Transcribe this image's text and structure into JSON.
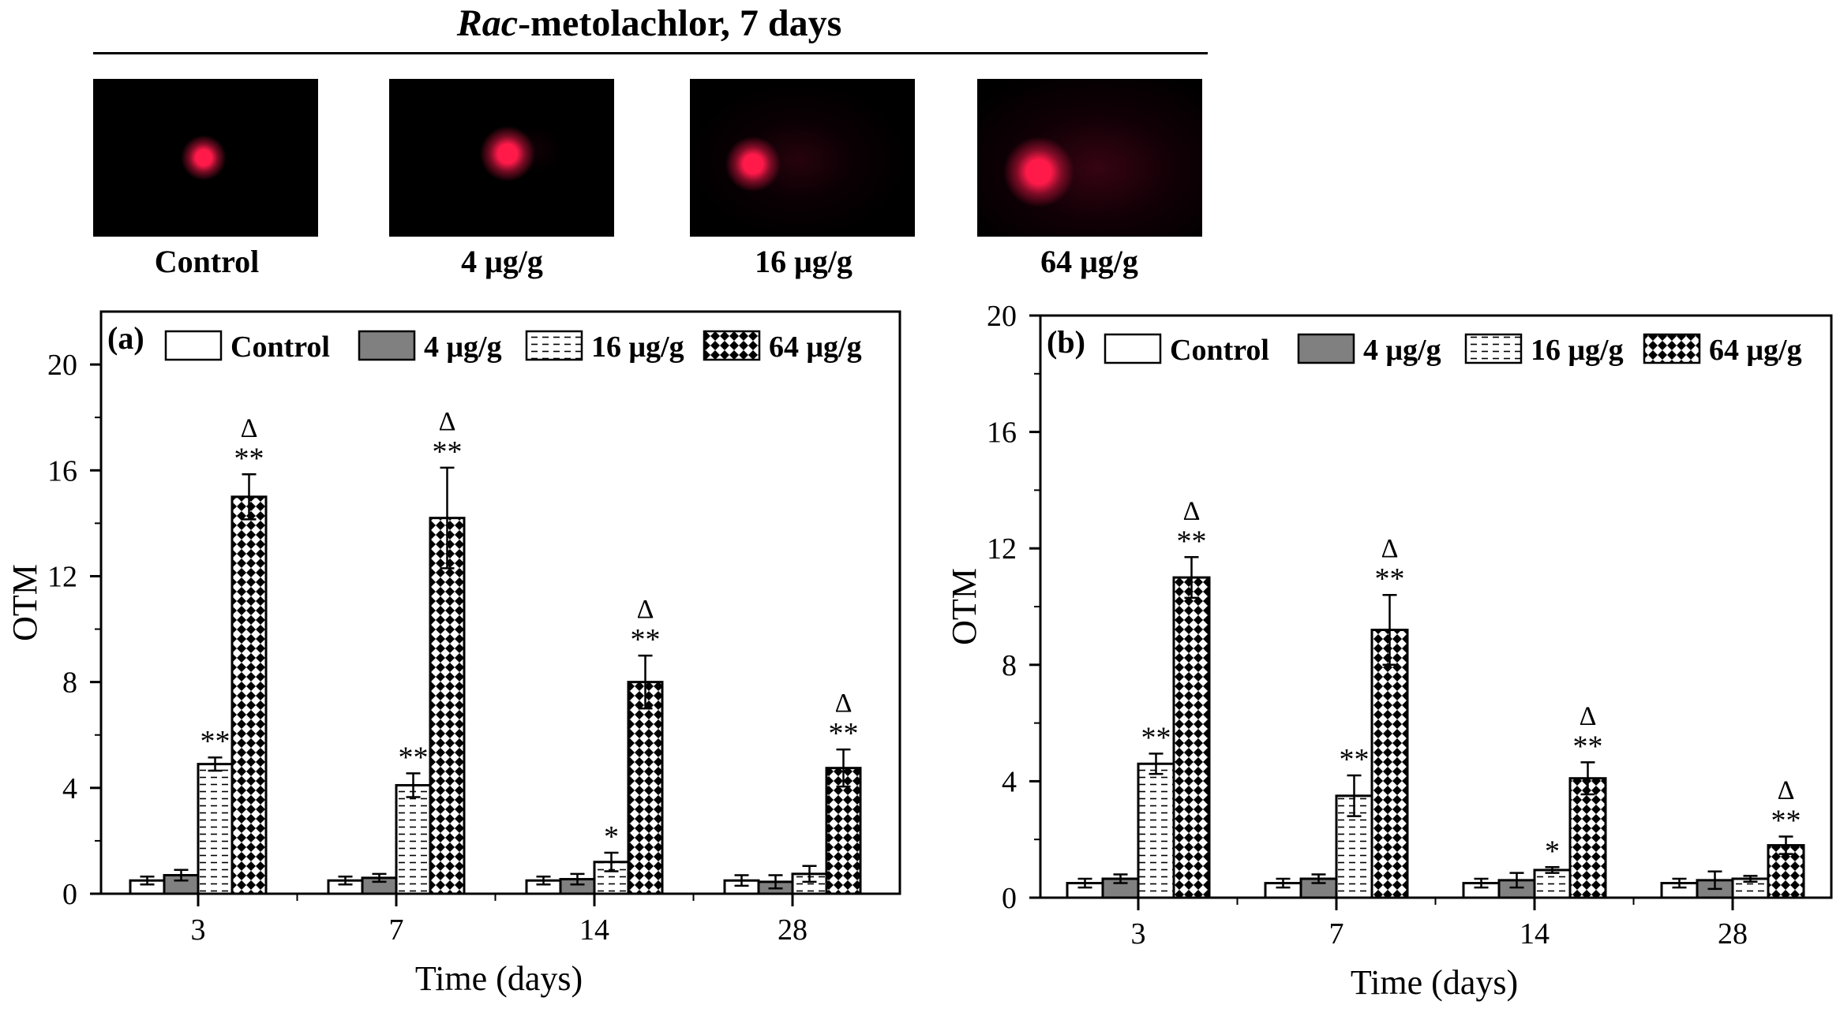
{
  "header": {
    "title_italic": "Rac",
    "title_rest": "-metolachlor, 7 days",
    "panels": [
      {
        "label": "Control",
        "tail_intensity": 0.0,
        "head_size": 0.08
      },
      {
        "label": "4 μg/g",
        "tail_intensity": 0.05,
        "head_size": 0.1
      },
      {
        "label": "16 μg/g",
        "tail_intensity": 0.45,
        "head_size": 0.12
      },
      {
        "label": "64 μg/g",
        "tail_intensity": 0.75,
        "head_size": 0.15
      }
    ]
  },
  "colors": {
    "comet": "#ff1a4a",
    "background": "#000000",
    "axis": "#000000",
    "bar_gray": "#808080"
  },
  "chart_data": [
    {
      "type": "bar",
      "panel_label": "(a)",
      "xlabel": "Time (days)",
      "ylabel": "OTM",
      "ylim": [
        0,
        22
      ],
      "yticks": [
        "0",
        "4",
        "8",
        "12",
        "16",
        "20"
      ],
      "categories": [
        "3",
        "7",
        "14",
        "28"
      ],
      "legend_position": "top",
      "series": [
        {
          "name": "Control",
          "pattern": "white",
          "values": [
            0.5,
            0.5,
            0.5,
            0.5
          ],
          "errors": [
            0.15,
            0.15,
            0.15,
            0.2
          ]
        },
        {
          "name": "4 μg/g",
          "pattern": "gray",
          "values": [
            0.7,
            0.6,
            0.55,
            0.45
          ],
          "errors": [
            0.2,
            0.15,
            0.2,
            0.25
          ]
        },
        {
          "name": "16 μg/g",
          "pattern": "dash",
          "values": [
            4.9,
            4.1,
            1.2,
            0.75
          ],
          "errors": [
            0.25,
            0.45,
            0.35,
            0.3
          ]
        },
        {
          "name": "64 μg/g",
          "pattern": "checker",
          "values": [
            15.0,
            14.2,
            8.0,
            4.75
          ],
          "errors": [
            0.85,
            1.9,
            1.0,
            0.7
          ]
        }
      ],
      "annotations": [
        {
          "series": 2,
          "category": 0,
          "text": "**"
        },
        {
          "series": 3,
          "category": 0,
          "text": "**",
          "delta": "Δ"
        },
        {
          "series": 2,
          "category": 1,
          "text": "**"
        },
        {
          "series": 3,
          "category": 1,
          "text": "**",
          "delta": "Δ"
        },
        {
          "series": 2,
          "category": 2,
          "text": "*"
        },
        {
          "series": 3,
          "category": 2,
          "text": "**",
          "delta": "Δ"
        },
        {
          "series": 3,
          "category": 3,
          "text": "**",
          "delta": "Δ"
        }
      ]
    },
    {
      "type": "bar",
      "panel_label": "(b)",
      "xlabel": "Time (days)",
      "ylabel": "OTM",
      "ylim": [
        0,
        20
      ],
      "yticks": [
        "0",
        "4",
        "8",
        "12",
        "16",
        "20"
      ],
      "categories": [
        "3",
        "7",
        "14",
        "28"
      ],
      "legend_position": "top",
      "series": [
        {
          "name": "Control",
          "pattern": "white",
          "values": [
            0.5,
            0.5,
            0.5,
            0.5
          ],
          "errors": [
            0.15,
            0.15,
            0.15,
            0.15
          ]
        },
        {
          "name": "4 μg/g",
          "pattern": "gray",
          "values": [
            0.65,
            0.65,
            0.6,
            0.6
          ],
          "errors": [
            0.15,
            0.15,
            0.25,
            0.3
          ]
        },
        {
          "name": "16 μg/g",
          "pattern": "dash",
          "values": [
            4.6,
            3.5,
            0.95,
            0.65
          ],
          "errors": [
            0.35,
            0.7,
            0.1,
            0.1
          ]
        },
        {
          "name": "64 μg/g",
          "pattern": "checker",
          "values": [
            11.0,
            9.2,
            4.1,
            1.8
          ],
          "errors": [
            0.7,
            1.2,
            0.55,
            0.3
          ]
        }
      ],
      "annotations": [
        {
          "series": 2,
          "category": 0,
          "text": "**"
        },
        {
          "series": 3,
          "category": 0,
          "text": "**",
          "delta": "Δ"
        },
        {
          "series": 2,
          "category": 1,
          "text": "**"
        },
        {
          "series": 3,
          "category": 1,
          "text": "**",
          "delta": "Δ"
        },
        {
          "series": 2,
          "category": 2,
          "text": "*"
        },
        {
          "series": 3,
          "category": 2,
          "text": "**",
          "delta": "Δ"
        },
        {
          "series": 3,
          "category": 3,
          "text": "**",
          "delta": "Δ"
        }
      ]
    }
  ]
}
